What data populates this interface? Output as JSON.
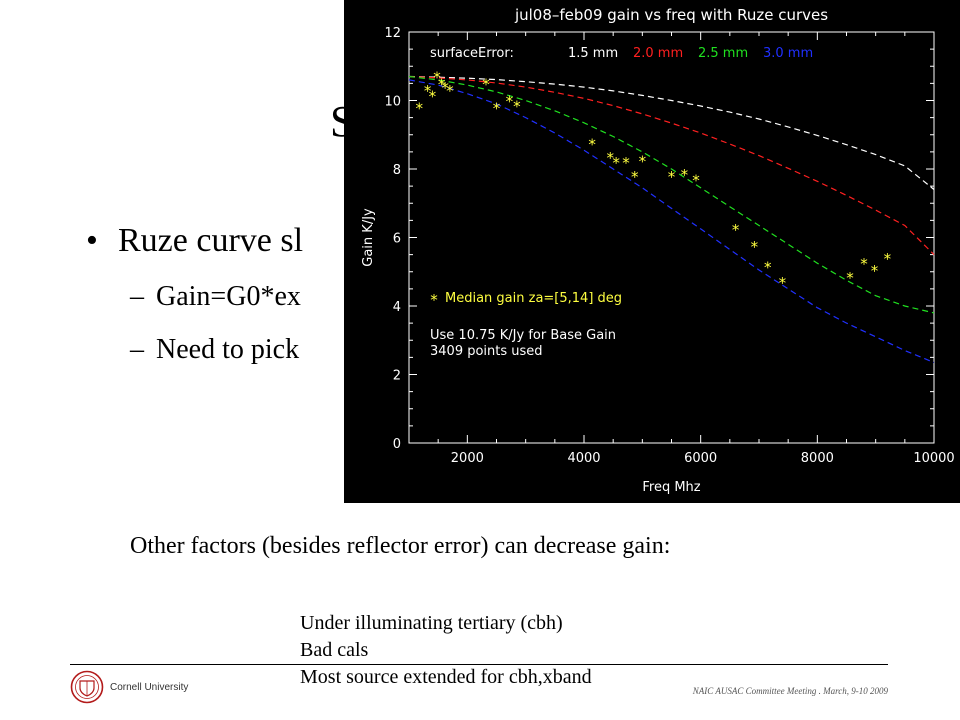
{
  "slide": {
    "title_visible": "S",
    "bullet": "Ruze curve sl",
    "sub_bullets": [
      "Gain=G0*ex",
      "Need to pick"
    ],
    "dash": "–",
    "bullet_mark": "•",
    "other_factors": "Other factors (besides reflector error) can decrease gain:",
    "factors": [
      "Under illuminating tertiary (cbh)",
      "Bad cals",
      "Most source extended for cbh,xband"
    ],
    "footer": "NAIC AUSAC Committee Meeting . March, 9-10 2009",
    "logo_text": "Cornell University"
  },
  "chart_data": {
    "type": "scatter",
    "title": "jul08–feb09 gain vs freq with Ruze curves",
    "xlabel": "Freq Mhz",
    "ylabel": "Gain K/Jy",
    "xlim": [
      1000,
      10000
    ],
    "ylim": [
      0,
      12
    ],
    "xticks": [
      2000,
      4000,
      6000,
      8000,
      10000
    ],
    "yticks": [
      0,
      2,
      4,
      6,
      8,
      10,
      12
    ],
    "legend_label": "surfaceError:",
    "series": [
      {
        "name": "1.5 mm",
        "surface_error_mm": 1.5,
        "color": "#ffffff",
        "x": [
          1000,
          1500,
          2000,
          2500,
          3000,
          3500,
          4000,
          4500,
          5000,
          5500,
          6000,
          6500,
          7000,
          7500,
          8000,
          8500,
          9000,
          9500,
          10000
        ],
        "y": [
          10.7,
          10.68,
          10.65,
          10.61,
          10.55,
          10.48,
          10.39,
          10.28,
          10.15,
          10.0,
          9.84,
          9.66,
          9.46,
          9.23,
          8.98,
          8.71,
          8.42,
          8.09,
          7.4
        ]
      },
      {
        "name": "2.0 mm",
        "surface_error_mm": 2.0,
        "color": "#ff2020",
        "x": [
          1000,
          1500,
          2000,
          2500,
          3000,
          3500,
          4000,
          4500,
          5000,
          5500,
          6000,
          6500,
          7000,
          7500,
          8000,
          8500,
          9000,
          9500,
          10000
        ],
        "y": [
          10.7,
          10.66,
          10.6,
          10.51,
          10.39,
          10.24,
          10.06,
          9.85,
          9.61,
          9.34,
          9.05,
          8.73,
          8.39,
          8.02,
          7.64,
          7.23,
          6.8,
          6.35,
          5.5
        ]
      },
      {
        "name": "2.5 mm",
        "surface_error_mm": 2.5,
        "color": "#20e020",
        "x": [
          1000,
          1500,
          2000,
          2500,
          3000,
          3500,
          4000,
          4500,
          5000,
          5500,
          6000,
          6500,
          7000,
          7500,
          8000,
          8500,
          9000,
          9500,
          10000
        ],
        "y": [
          10.7,
          10.6,
          10.45,
          10.25,
          10.0,
          9.7,
          9.35,
          8.95,
          8.5,
          8.0,
          7.45,
          6.9,
          6.35,
          5.8,
          5.25,
          4.75,
          4.3,
          4.0,
          3.8
        ]
      },
      {
        "name": "3.0 mm",
        "surface_error_mm": 3.0,
        "color": "#2030ff",
        "x": [
          1000,
          1500,
          2000,
          2500,
          3000,
          3500,
          4000,
          4500,
          5000,
          5500,
          6000,
          6500,
          7000,
          7500,
          8000,
          8500,
          9000,
          9500,
          10000
        ],
        "y": [
          10.6,
          10.45,
          10.2,
          9.9,
          9.5,
          9.05,
          8.55,
          8.0,
          7.45,
          6.85,
          6.25,
          5.65,
          5.05,
          4.5,
          3.95,
          3.5,
          3.1,
          2.7,
          2.35
        ]
      },
      {
        "name": "Median gain za=[5,14] deg",
        "color": "#ffff40",
        "marker": "*",
        "x": [
          1175,
          1320,
          1400,
          1480,
          1560,
          1620,
          1700,
          2320,
          2500,
          2720,
          2850,
          4140,
          4450,
          4550,
          4720,
          4870,
          5000,
          5500,
          5720,
          5920,
          6600,
          6920,
          7150,
          7400,
          8560,
          8800,
          8980,
          9200
        ],
        "y": [
          9.8,
          10.3,
          10.15,
          10.7,
          10.5,
          10.4,
          10.3,
          10.5,
          9.8,
          10.0,
          9.85,
          8.75,
          8.35,
          8.2,
          8.2,
          7.8,
          8.25,
          7.8,
          7.85,
          7.7,
          6.25,
          5.75,
          5.15,
          4.7,
          4.85,
          5.25,
          5.05,
          5.4
        ]
      }
    ],
    "annotations": [
      "Use 10.75 K/Jy for Base Gain",
      "3409 points used"
    ]
  }
}
